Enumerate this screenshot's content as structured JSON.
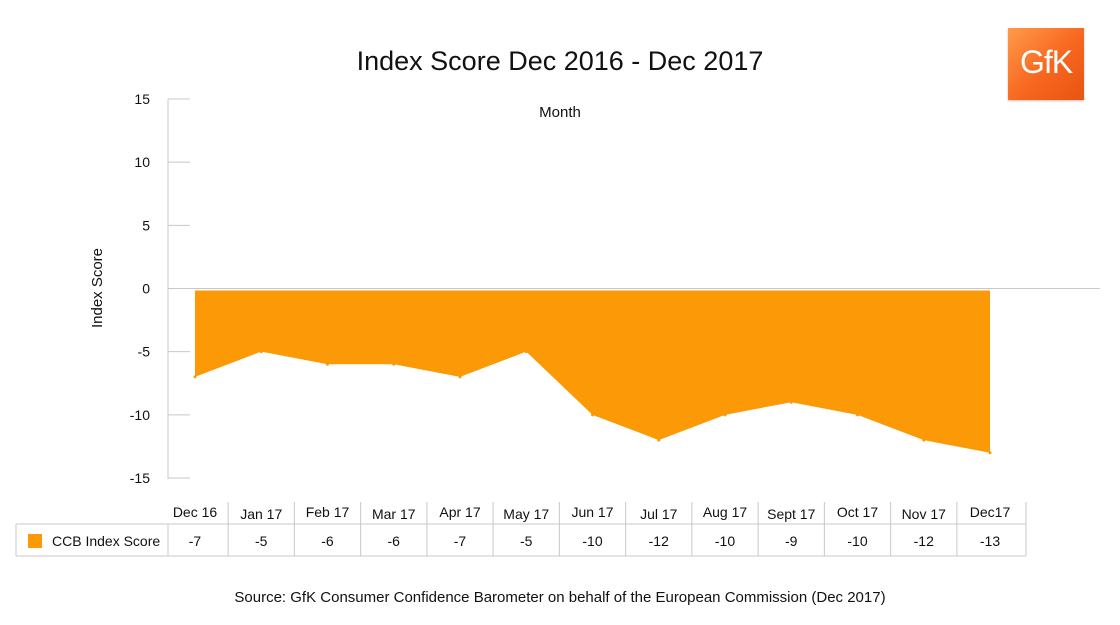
{
  "title": "Index Score Dec 2016 - Dec 2017",
  "logo_text": "GfK",
  "source": "Source: GfK Consumer Confidence Barometer on behalf of the European Commission (Dec 2017)",
  "colors": {
    "area": "#fb9a06",
    "axis": "#c8c8c8",
    "text": "#111111"
  },
  "chart_data": {
    "type": "area",
    "title": "Index Score Dec 2016 - Dec 2017",
    "xlabel": "Month",
    "ylabel": "Index Score",
    "ylim": [
      -15,
      15
    ],
    "yticks": [
      15,
      10,
      5,
      0,
      -5,
      -10,
      -15
    ],
    "grid": false,
    "categories": [
      "Dec 16",
      "Jan 17",
      "Feb 17",
      "Mar 17",
      "Apr 17",
      "May 17",
      "Jun 17",
      "Jul 17",
      "Aug 17",
      "Sept 17",
      "Oct 17",
      "Nov 17",
      "Dec17"
    ],
    "series": [
      {
        "name": "CCB Index Score",
        "values": [
          -7,
          -5,
          -6,
          -6,
          -7,
          -5,
          -10,
          -12,
          -10,
          -9,
          -10,
          -12,
          -13
        ],
        "table_labels": [
          "-7",
          "-5",
          "-6",
          "-6",
          "-7",
          "-5",
          "-10",
          "-12",
          "-10",
          "-9",
          "-10",
          "-12",
          "-13"
        ]
      }
    ]
  }
}
